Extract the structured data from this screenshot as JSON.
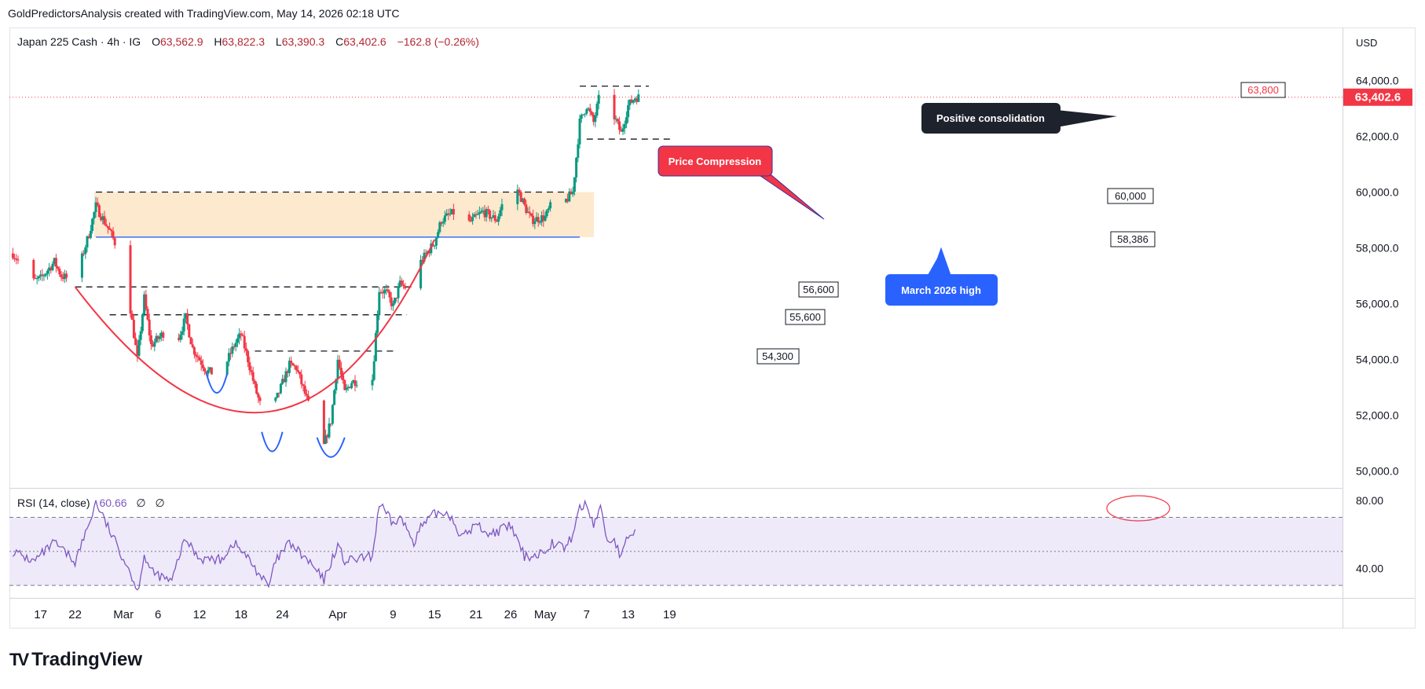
{
  "header": {
    "caption": "GoldPredictorsAnalysis created with TradingView.com, May 14, 2026 02:18 UTC"
  },
  "legend": {
    "symbol": "Japan 225 Cash · 4h · IG",
    "o_label": "O",
    "o": "63,562.9",
    "h_label": "H",
    "h": "63,822.3",
    "l_label": "L",
    "l": "63,390.3",
    "c_label": "C",
    "c": "63,402.6",
    "change": "−162.8 (−0.26%)"
  },
  "currency": "USD",
  "rsi_legend": {
    "name": "RSI (14, close)",
    "value": "60.66",
    "na1": "∅",
    "na2": "∅"
  },
  "annotations": {
    "price_compression": "Price Compression",
    "positive_consolidation": "Positive consolidation",
    "march_high": "March 2026 high"
  },
  "level_labels": {
    "l63800": "63,800",
    "l60000": "60,000",
    "l58386": "58,386",
    "l56600": "56,600",
    "l55600": "55,600",
    "l54300": "54,300"
  },
  "last_price_label": "63,402.6",
  "colors": {
    "up": "#089981",
    "down": "#f23645",
    "zone": "#fde5c4",
    "rsi_band": "#eeeaf9",
    "rsi_line": "#7e57c2",
    "blue": "#2962ff",
    "red": "#f23645",
    "dark": "#1e222d"
  },
  "footer": {
    "brand": "TradingView"
  },
  "chart_data": [
    {
      "type": "candlestick",
      "title": "Japan 225 Cash · 4h · IG",
      "ylim": [
        49500,
        64900
      ],
      "y_ticks": [
        "64,000.0",
        "62,000.0",
        "60,000.0",
        "58,000.0",
        "56,000.0",
        "54,000.0",
        "52,000.0",
        "50,000.0"
      ],
      "y_tick_values": [
        64000,
        62000,
        60000,
        58000,
        56000,
        54000,
        52000,
        50000
      ],
      "x_ticks": [
        "17",
        "22",
        "Mar",
        "6",
        "12",
        "18",
        "24",
        "Apr",
        "9",
        "15",
        "21",
        "26",
        "May",
        "7",
        "13",
        "19"
      ],
      "levels": [
        63800,
        61900,
        60000,
        58386,
        56600,
        55600,
        54300
      ],
      "last_price": 63402.6,
      "path_anchors": [
        {
          "date": "2026-02-13",
          "close": 57800
        },
        {
          "date": "2026-02-16",
          "close": 56800
        },
        {
          "date": "2026-02-17",
          "close": 56900
        },
        {
          "date": "2026-02-19",
          "close": 57500
        },
        {
          "date": "2026-02-20",
          "close": 57000
        },
        {
          "date": "2026-02-22",
          "close": 56800
        },
        {
          "date": "2026-02-24",
          "close": 58500
        },
        {
          "date": "2026-02-25",
          "close": 59500
        },
        {
          "date": "2026-02-27",
          "close": 58600
        },
        {
          "date": "2026-03-01",
          "close": 57500
        },
        {
          "date": "2026-03-02",
          "close": 55800
        },
        {
          "date": "2026-03-03",
          "close": 54000
        },
        {
          "date": "2026-03-04",
          "close": 56200
        },
        {
          "date": "2026-03-05",
          "close": 54500
        },
        {
          "date": "2026-03-07",
          "close": 55000
        },
        {
          "date": "2026-03-08",
          "close": 52000
        },
        {
          "date": "2026-03-09",
          "close": 54800
        },
        {
          "date": "2026-03-10",
          "close": 55500
        },
        {
          "date": "2026-03-11",
          "close": 54400
        },
        {
          "date": "2026-03-13",
          "close": 53600
        },
        {
          "date": "2026-03-15",
          "close": 53400
        },
        {
          "date": "2026-03-17",
          "close": 54500
        },
        {
          "date": "2026-03-18",
          "close": 54900
        },
        {
          "date": "2026-03-19",
          "close": 54000
        },
        {
          "date": "2026-03-20",
          "close": 53000
        },
        {
          "date": "2026-03-21",
          "close": 52200
        },
        {
          "date": "2026-03-22",
          "close": 50900
        },
        {
          "date": "2026-03-23",
          "close": 52500
        },
        {
          "date": "2026-03-25",
          "close": 53800
        },
        {
          "date": "2026-03-26",
          "close": 53700
        },
        {
          "date": "2026-03-28",
          "close": 52200
        },
        {
          "date": "2026-03-30",
          "close": 50900
        },
        {
          "date": "2026-03-31",
          "close": 51800
        },
        {
          "date": "2026-04-01",
          "close": 54000
        },
        {
          "date": "2026-04-02",
          "close": 52800
        },
        {
          "date": "2026-04-03",
          "close": 53200
        },
        {
          "date": "2026-04-06",
          "close": 53300
        },
        {
          "date": "2026-04-07",
          "close": 56500
        },
        {
          "date": "2026-04-08",
          "close": 56400
        },
        {
          "date": "2026-04-09",
          "close": 55900
        },
        {
          "date": "2026-04-10",
          "close": 56700
        },
        {
          "date": "2026-04-12",
          "close": 56400
        },
        {
          "date": "2026-04-13",
          "close": 57500
        },
        {
          "date": "2026-04-15",
          "close": 58200
        },
        {
          "date": "2026-04-16",
          "close": 59000
        },
        {
          "date": "2026-04-18",
          "close": 59300
        },
        {
          "date": "2026-04-19",
          "close": 59600
        },
        {
          "date": "2026-04-20",
          "close": 58900
        },
        {
          "date": "2026-04-22",
          "close": 59300
        },
        {
          "date": "2026-04-24",
          "close": 59000
        },
        {
          "date": "2026-04-25",
          "close": 59700
        },
        {
          "date": "2026-04-26",
          "close": 60700
        },
        {
          "date": "2026-04-28",
          "close": 59500
        },
        {
          "date": "2026-04-29",
          "close": 59000
        },
        {
          "date": "2026-05-01",
          "close": 59100
        },
        {
          "date": "2026-05-02",
          "close": 59600
        },
        {
          "date": "2026-05-03",
          "close": 59400
        },
        {
          "date": "2026-05-05",
          "close": 60000
        },
        {
          "date": "2026-05-06",
          "close": 62500
        },
        {
          "date": "2026-05-07",
          "close": 63100
        },
        {
          "date": "2026-05-08",
          "close": 62500
        },
        {
          "date": "2026-05-09",
          "close": 63600
        },
        {
          "date": "2026-05-10",
          "close": 62600
        },
        {
          "date": "2026-05-11",
          "close": 62700
        },
        {
          "date": "2026-05-12",
          "close": 62100
        },
        {
          "date": "2026-05-13",
          "close": 63100
        },
        {
          "date": "2026-05-14",
          "close": 63400
        }
      ]
    },
    {
      "type": "line",
      "title": "RSI (14, close)",
      "ylim": [
        25,
        85
      ],
      "y_ticks": [
        "80.00",
        "40.00"
      ],
      "y_tick_values": [
        80,
        40
      ],
      "bands": [
        70,
        50,
        30
      ],
      "rsi_anchors": [
        {
          "date": "2026-02-13",
          "value": 50
        },
        {
          "date": "2026-02-16",
          "value": 44
        },
        {
          "date": "2026-02-19",
          "value": 55
        },
        {
          "date": "2026-02-22",
          "value": 44
        },
        {
          "date": "2026-02-24",
          "value": 66
        },
        {
          "date": "2026-02-25",
          "value": 79
        },
        {
          "date": "2026-02-27",
          "value": 62
        },
        {
          "date": "2026-03-02",
          "value": 38
        },
        {
          "date": "2026-03-03",
          "value": 26
        },
        {
          "date": "2026-03-04",
          "value": 48
        },
        {
          "date": "2026-03-05",
          "value": 38
        },
        {
          "date": "2026-03-08",
          "value": 32
        },
        {
          "date": "2026-03-09",
          "value": 47
        },
        {
          "date": "2026-03-10",
          "value": 57
        },
        {
          "date": "2026-03-12",
          "value": 46
        },
        {
          "date": "2026-03-15",
          "value": 45
        },
        {
          "date": "2026-03-17",
          "value": 55
        },
        {
          "date": "2026-03-19",
          "value": 46
        },
        {
          "date": "2026-03-22",
          "value": 29
        },
        {
          "date": "2026-03-23",
          "value": 44
        },
        {
          "date": "2026-03-25",
          "value": 55
        },
        {
          "date": "2026-03-28",
          "value": 43
        },
        {
          "date": "2026-03-30",
          "value": 33
        },
        {
          "date": "2026-04-01",
          "value": 54
        },
        {
          "date": "2026-04-02",
          "value": 44
        },
        {
          "date": "2026-04-06",
          "value": 47
        },
        {
          "date": "2026-04-07",
          "value": 78
        },
        {
          "date": "2026-04-09",
          "value": 66
        },
        {
          "date": "2026-04-10",
          "value": 70
        },
        {
          "date": "2026-04-12",
          "value": 56
        },
        {
          "date": "2026-04-13",
          "value": 64
        },
        {
          "date": "2026-04-15",
          "value": 72
        },
        {
          "date": "2026-04-17",
          "value": 73
        },
        {
          "date": "2026-04-19",
          "value": 58
        },
        {
          "date": "2026-04-21",
          "value": 66
        },
        {
          "date": "2026-04-23",
          "value": 60
        },
        {
          "date": "2026-04-26",
          "value": 65
        },
        {
          "date": "2026-04-28",
          "value": 47
        },
        {
          "date": "2026-04-30",
          "value": 48
        },
        {
          "date": "2026-05-02",
          "value": 55
        },
        {
          "date": "2026-05-04",
          "value": 52
        },
        {
          "date": "2026-05-05",
          "value": 60
        },
        {
          "date": "2026-05-06",
          "value": 76
        },
        {
          "date": "2026-05-07",
          "value": 77
        },
        {
          "date": "2026-05-08",
          "value": 66
        },
        {
          "date": "2026-05-09",
          "value": 76
        },
        {
          "date": "2026-05-10",
          "value": 56
        },
        {
          "date": "2026-05-11",
          "value": 57
        },
        {
          "date": "2026-05-12",
          "value": 46
        },
        {
          "date": "2026-05-13",
          "value": 59
        },
        {
          "date": "2026-05-14",
          "value": 61
        }
      ]
    }
  ]
}
